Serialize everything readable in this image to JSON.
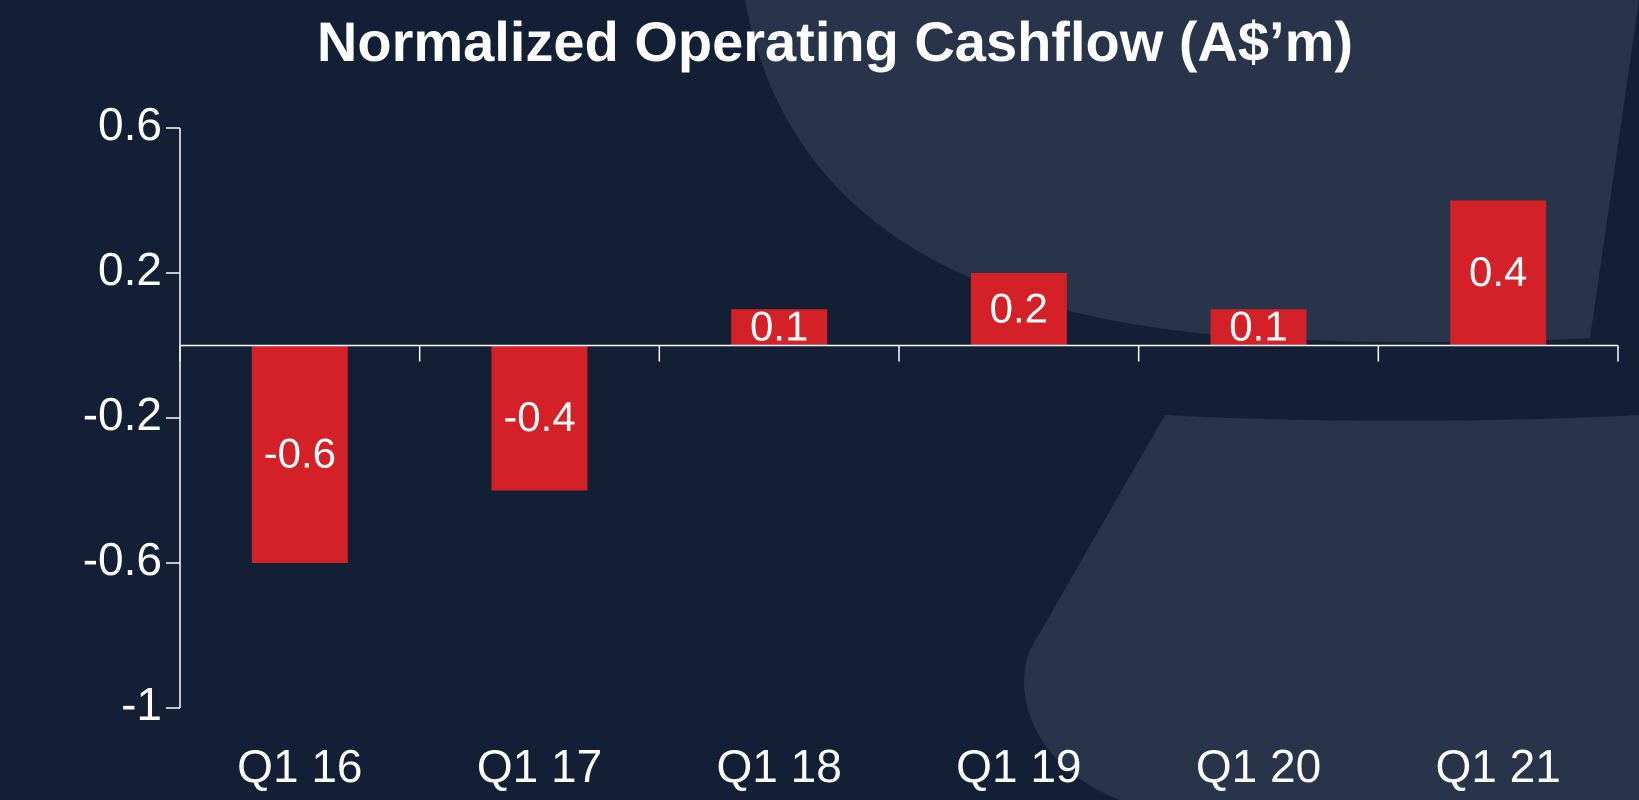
{
  "chart_data": {
    "type": "bar",
    "title": "Normalized Operating Cashflow (A$’m)",
    "categories": [
      "Q1 16",
      "Q1 17",
      "Q1 18",
      "Q1 19",
      "Q1 20",
      "Q1 21"
    ],
    "values": [
      -0.6,
      -0.4,
      0.1,
      0.2,
      0.1,
      0.4
    ],
    "color": "#d42027",
    "ylim": [
      -1,
      0.6
    ],
    "yticks": [
      -1,
      -0.6,
      -0.2,
      0.2,
      0.6
    ],
    "grid": false
  }
}
